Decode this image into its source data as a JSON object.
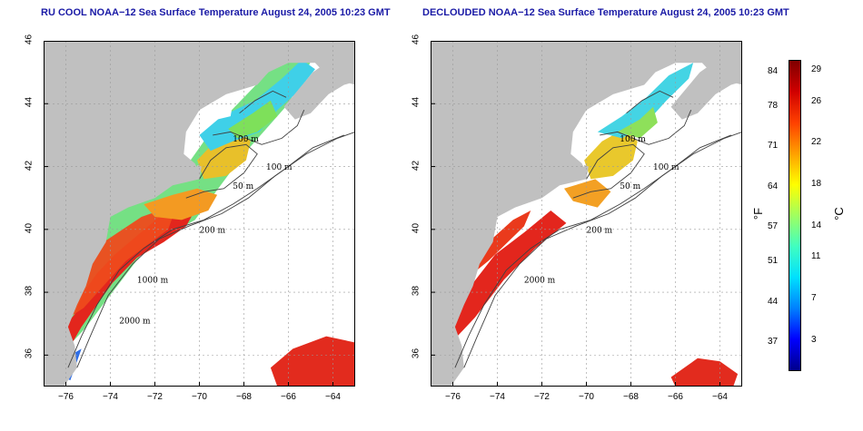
{
  "panels": [
    {
      "title": "RU COOL NOAA−12 Sea Surface Temperature August 24, 2005 10:23 GMT",
      "contour_labels": [
        "100 m",
        "100 m",
        "50 m",
        "200 m",
        "1000 m",
        "2000 m"
      ]
    },
    {
      "title": "DECLOUDED NOAA−12 Sea Surface Temperature August 24, 2005 10:23 GMT",
      "contour_labels": [
        "100 m",
        "100 m",
        "50 m",
        "200 m",
        "2000 m"
      ]
    }
  ],
  "axes": {
    "lat_ticks": [
      "46",
      "44",
      "42",
      "40",
      "38",
      "36"
    ],
    "lat_values": [
      46,
      44,
      42,
      40,
      38,
      36
    ],
    "lon_ticks": [
      "−76",
      "−74",
      "−72",
      "−70",
      "−68",
      "−66",
      "−64"
    ],
    "lon_values": [
      -76,
      -74,
      -72,
      -70,
      -68,
      -66,
      -64
    ],
    "lat_range": [
      35,
      46
    ],
    "lon_range": [
      -77,
      -63
    ]
  },
  "colorbar": {
    "fahrenheit_ticks": [
      "84",
      "78",
      "71",
      "64",
      "57",
      "51",
      "44",
      "37"
    ],
    "fahrenheit_values": [
      84,
      78,
      71,
      64,
      57,
      51,
      44,
      37
    ],
    "celsius_ticks": [
      "29",
      "26",
      "22",
      "18",
      "14",
      "11",
      "7",
      "3"
    ],
    "celsius_values": [
      29,
      26,
      22,
      18,
      14,
      11,
      7,
      3
    ],
    "unit_f": "°F",
    "unit_c": "°C",
    "range_c": [
      0,
      30
    ],
    "colors": [
      "#00008b",
      "#0000ff",
      "#0080ff",
      "#00e0ff",
      "#40ffc0",
      "#a0ff60",
      "#ffff00",
      "#ffa000",
      "#ff4000",
      "#d00000",
      "#800000"
    ]
  },
  "colors": {
    "land": "#c0c0c0",
    "title": "#1a1aa6",
    "cloud": "#ffffff",
    "contour": "#404040",
    "grid": "#9a9a9a"
  }
}
